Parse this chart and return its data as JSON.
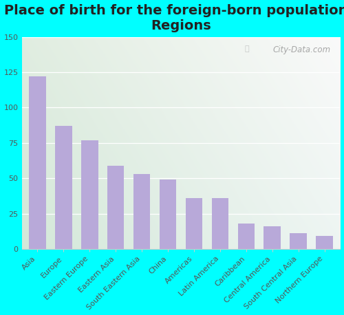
{
  "title": "Place of birth for the foreign-born population -\nRegions",
  "categories": [
    "Asia",
    "Europe",
    "Eastern Europe",
    "Eastern Asia",
    "South Eastern Asia",
    "China",
    "Americas",
    "Latin America",
    "Caribbean",
    "Central America",
    "South Central Asia",
    "Northern Europe"
  ],
  "values": [
    122,
    87,
    77,
    59,
    53,
    49,
    36,
    36,
    18,
    16,
    11,
    9
  ],
  "bar_color": "#b8a9d9",
  "background_outer": "#00FFFF",
  "ylim": [
    0,
    150
  ],
  "yticks": [
    0,
    25,
    50,
    75,
    100,
    125,
    150
  ],
  "watermark": "City-Data.com",
  "title_fontsize": 14,
  "tick_fontsize": 8,
  "grid_color": "#e0e0e0",
  "bg_corner_tl": "#e0ede4",
  "bg_corner_tr": "#f0f4f0",
  "bg_corner_bl": "#c8e6d0",
  "bg_corner_br": "#daeae0"
}
